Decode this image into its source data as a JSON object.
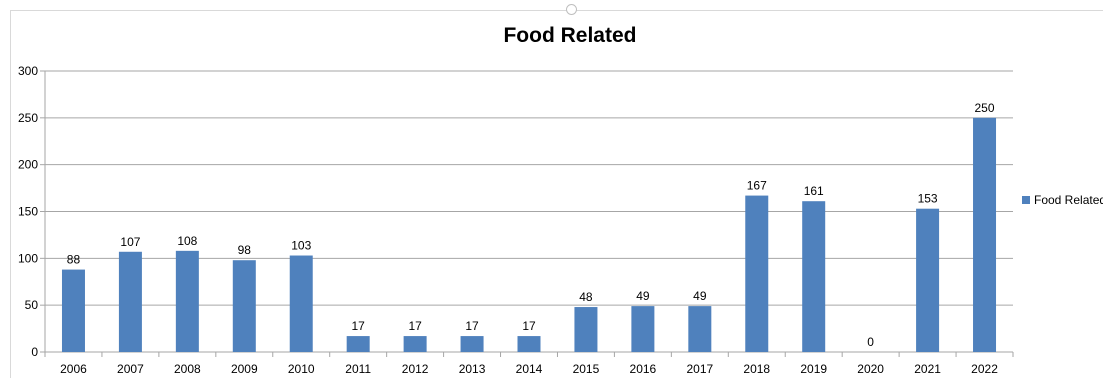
{
  "chart_data": {
    "type": "bar",
    "title": "Food Related",
    "xlabel": "",
    "ylabel": "",
    "categories": [
      "2006",
      "2007",
      "2008",
      "2009",
      "2010",
      "2011",
      "2012",
      "2013",
      "2014",
      "2015",
      "2016",
      "2017",
      "2018",
      "2019",
      "2020",
      "2021",
      "2022"
    ],
    "series": [
      {
        "name": "Food Related",
        "values": [
          88,
          107,
          108,
          98,
          103,
          17,
          17,
          17,
          17,
          48,
          49,
          49,
          167,
          161,
          0,
          153,
          250
        ],
        "color": "#4f81bd"
      }
    ],
    "ylim": [
      0,
      300
    ],
    "yticks": [
      0,
      50,
      100,
      150,
      200,
      250,
      300
    ],
    "grid": true,
    "legend_position": "right",
    "data_labels": true
  }
}
